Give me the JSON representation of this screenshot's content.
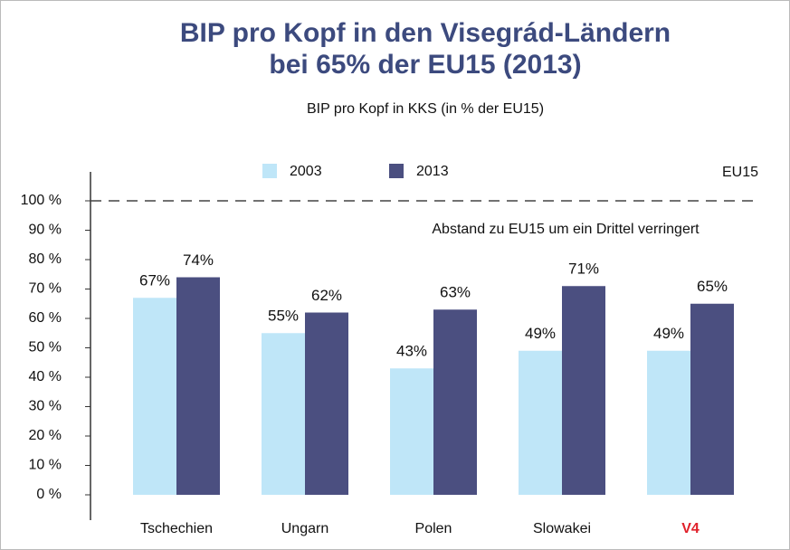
{
  "chart_data": {
    "type": "bar",
    "title": [
      "BIP pro Kopf in den Visegrád-Ländern",
      "bei 65% der EU15 (2013)"
    ],
    "subtitle": "BIP pro Kopf in KKS (in % der EU15)",
    "annotation": "Abstand zu EU15 um ein Drittel verringert",
    "reference_line": {
      "value": 100,
      "label": "EU15",
      "style": "dashed"
    },
    "categories": [
      "Tschechien",
      "Ungarn",
      "Polen",
      "Slowakei",
      "V4"
    ],
    "category_colors": [
      "#111111",
      "#111111",
      "#111111",
      "#111111",
      "#e0212b"
    ],
    "series": [
      {
        "name": "2003",
        "color": "#bfe6f8",
        "values": [
          67,
          55,
          43,
          49,
          49
        ],
        "value_labels": [
          "67%",
          "55%",
          "43%",
          "49%",
          "49%"
        ]
      },
      {
        "name": "2013",
        "color": "#4b4f80",
        "values": [
          74,
          62,
          63,
          71,
          65
        ],
        "value_labels": [
          "74%",
          "62%",
          "63%",
          "71%",
          "65%"
        ]
      }
    ],
    "ylim": [
      0,
      100
    ],
    "yticks": [
      {
        "value": 0,
        "label": "0 %"
      },
      {
        "value": 10,
        "label": "10 %"
      },
      {
        "value": 20,
        "label": "20 %"
      },
      {
        "value": 30,
        "label": "30 %"
      },
      {
        "value": 40,
        "label": "40 %"
      },
      {
        "value": 50,
        "label": "50 %"
      },
      {
        "value": 60,
        "label": "60 %"
      },
      {
        "value": 70,
        "label": "70 %"
      },
      {
        "value": 80,
        "label": "80 %"
      },
      {
        "value": 90,
        "label": "90 %"
      },
      {
        "value": 100,
        "label": "100 %"
      }
    ],
    "grid": false,
    "legend": "top"
  }
}
